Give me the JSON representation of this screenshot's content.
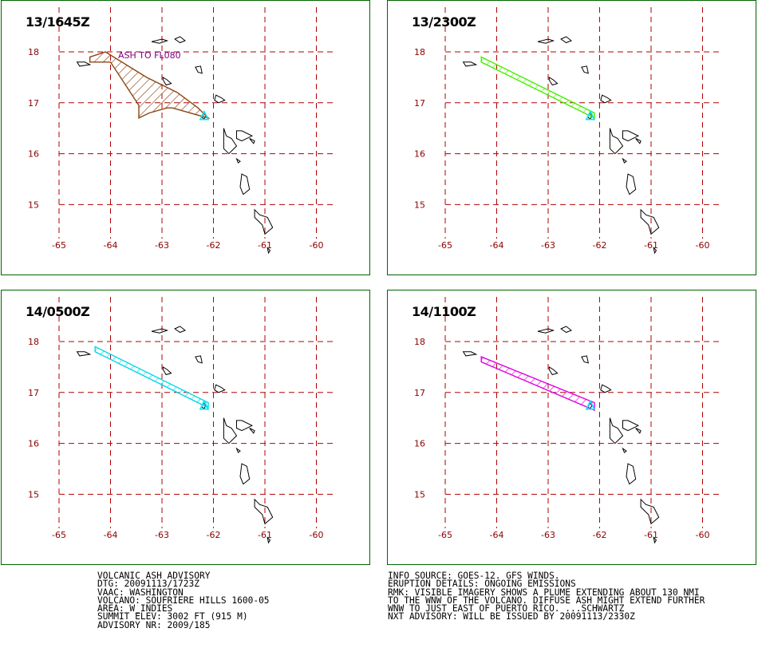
{
  "map": {
    "lon_ticks": [
      "-65",
      "-64",
      "-63",
      "-62",
      "-61",
      "-60"
    ],
    "lat_ticks": [
      "18",
      "17",
      "16",
      "15"
    ],
    "colors": {
      "grid": "#b00000",
      "tick_label": "#8b0000",
      "coast": "#000000",
      "frame": "#006400"
    },
    "panels": [
      {
        "title": "13/1645Z",
        "label": "ASH TO FL080",
        "fill_color": "#8b4513",
        "source_color": "#00e5ff",
        "plume": [
          [
            -64.4,
            17.9
          ],
          [
            -64.1,
            18.0
          ],
          [
            -63.3,
            17.5
          ],
          [
            -62.7,
            17.2
          ],
          [
            -62.3,
            16.9
          ],
          [
            -62.1,
            16.7
          ],
          [
            -62.8,
            16.9
          ],
          [
            -62.9,
            16.9
          ],
          [
            -63.25,
            16.8
          ],
          [
            -63.45,
            16.7
          ],
          [
            -63.45,
            16.95
          ],
          [
            -64.0,
            17.8
          ],
          [
            -64.4,
            17.8
          ]
        ]
      },
      {
        "title": "13/2300Z",
        "label": "",
        "fill_color": "#44ee00",
        "source_color": "#00e5ff",
        "plume": [
          [
            -64.3,
            17.9
          ],
          [
            -64.3,
            17.8
          ],
          [
            -62.1,
            16.7
          ],
          [
            -62.1,
            16.8
          ],
          [
            -64.3,
            17.9
          ]
        ]
      },
      {
        "title": "14/0500Z",
        "label": "",
        "fill_color": "#00d8e8",
        "source_color": "#00e5ff",
        "plume": [
          [
            -64.3,
            17.9
          ],
          [
            -64.3,
            17.8
          ],
          [
            -62.1,
            16.7
          ],
          [
            -62.1,
            16.8
          ],
          [
            -64.3,
            17.9
          ]
        ]
      },
      {
        "title": "14/1100Z",
        "label": "",
        "fill_color": "#e000e0",
        "source_color": "#00e5ff",
        "plume": [
          [
            -64.3,
            17.7
          ],
          [
            -64.3,
            17.6
          ],
          [
            -62.1,
            16.65
          ],
          [
            -62.1,
            16.8
          ],
          [
            -64.3,
            17.7
          ]
        ]
      }
    ]
  },
  "advisory_left": [
    "VOLCANIC ASH ADVISORY",
    "DTG: 20091113/1723Z",
    "VAAC: WASHINGTON",
    "VOLCANO: SOUFRIERE HILLS 1600-05",
    "AREA: W_INDIES",
    "SUMMIT ELEV: 3002 FT (915 M)",
    "ADVISORY NR: 2009/185"
  ],
  "advisory_right": [
    "INFO SOURCE: GOES-12. GFS WINDS.",
    "ERUPTION DETAILS: ONGOING EMISSIONS",
    "RMK: VISIBLE IMAGERY SHOWS A PLUME EXTENDING ABOUT 130 NMI",
    "TO THE WNW OF THE VOLCANO. DIFFUSE ASH MIGHT EXTEND FURTHER",
    "WNW TO JUST EAST OF PUERTO RICO. ...SCHWARTZ",
    "NXT ADVISORY: WILL BE ISSUED BY 20091113/2330Z"
  ]
}
